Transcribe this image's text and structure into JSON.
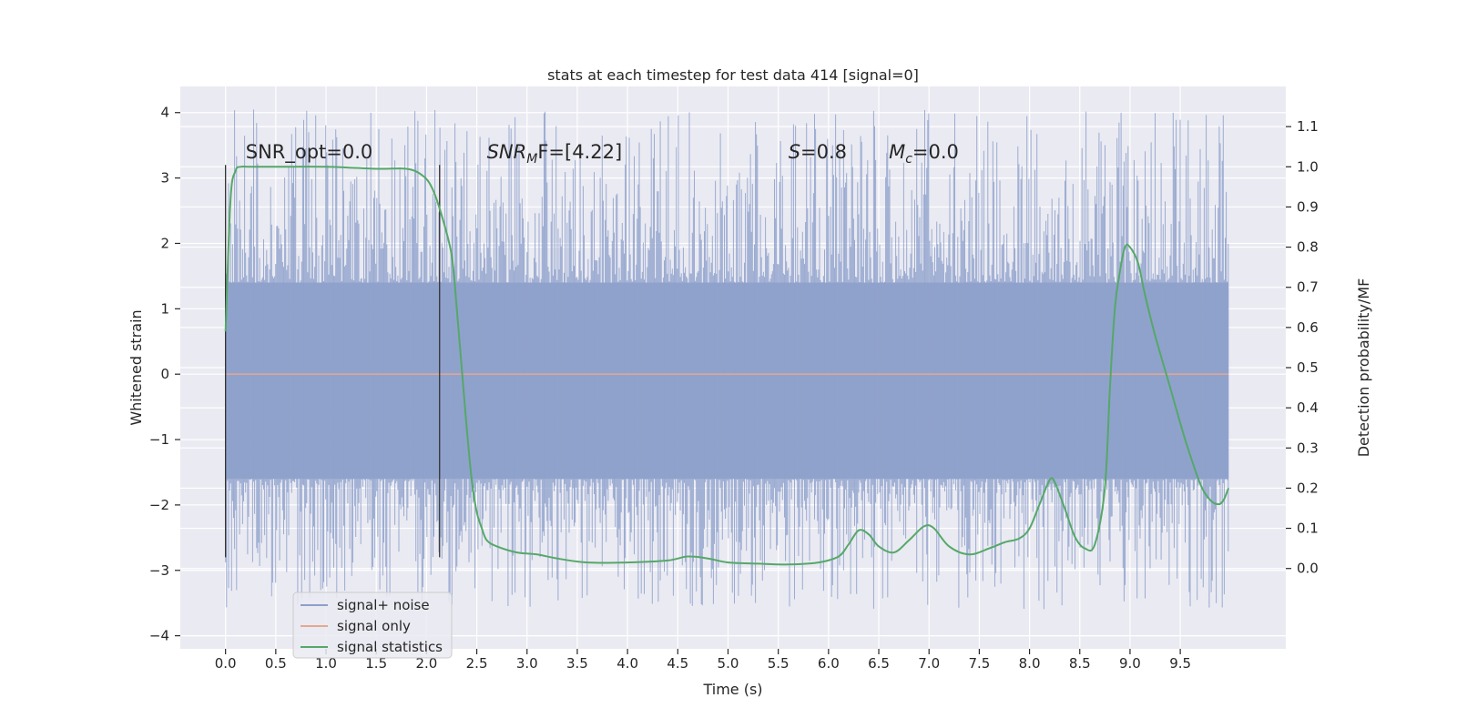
{
  "chart_data": {
    "type": "line",
    "title": "stats at each timestep for test data 414 [signal=0]",
    "xlabel": "Time (s)",
    "ylabel": "Whitened strain",
    "y2label": "Detection probability/MF",
    "xlim": [
      -0.45,
      10.55
    ],
    "ylim": [
      -4.2,
      4.4
    ],
    "y2lim": [
      -0.2,
      1.2
    ],
    "xticks": [
      0.0,
      0.5,
      1.0,
      1.5,
      2.0,
      2.5,
      3.0,
      3.5,
      4.0,
      4.5,
      5.0,
      5.5,
      6.0,
      6.5,
      7.0,
      7.5,
      8.0,
      8.5,
      9.0,
      9.5
    ],
    "xtick_labels": [
      "0.0",
      "0.5",
      "1.0",
      "1.5",
      "2.0",
      "2.5",
      "3.0",
      "3.5",
      "4.0",
      "4.5",
      "5.0",
      "5.5",
      "6.0",
      "6.5",
      "7.0",
      "7.5",
      "8.0",
      "8.5",
      "9.0",
      "9.5"
    ],
    "yticks": [
      -4,
      -3,
      -2,
      -1,
      0,
      1,
      2,
      3,
      4
    ],
    "ytick_labels": [
      "−4",
      "−3",
      "−2",
      "−1",
      "0",
      "1",
      "2",
      "3",
      "4"
    ],
    "y2ticks": [
      0.0,
      0.1,
      0.2,
      0.3,
      0.4,
      0.5,
      0.6,
      0.7,
      0.8,
      0.9,
      1.0,
      1.1
    ],
    "y2tick_labels": [
      "0.0",
      "0.1",
      "0.2",
      "0.3",
      "0.4",
      "0.5",
      "0.6",
      "0.7",
      "0.8",
      "0.9",
      "1.0",
      "1.1"
    ],
    "grid": true,
    "legend_placement": "lower-left",
    "series": [
      {
        "name": "signal+ noise",
        "color": "#8da0cb",
        "description_axis": "left",
        "envelope": {
          "t_start": 0.0,
          "t_end": 9.98,
          "typical_band": [
            -1.6,
            1.4
          ],
          "extreme_band": [
            -3.6,
            4.05
          ]
        }
      },
      {
        "name": "signal only",
        "color": "#e6a88e",
        "axis": "left",
        "x": [
          0.0,
          9.98
        ],
        "y": [
          0.0,
          0.0
        ]
      },
      {
        "name": "signal statistics",
        "color": "#55a868",
        "axis": "right",
        "x": [
          0.0,
          0.05,
          0.1,
          0.15,
          0.25,
          0.5,
          1.0,
          1.5,
          1.8,
          1.95,
          2.05,
          2.15,
          2.25,
          2.3,
          2.35,
          2.4,
          2.45,
          2.5,
          2.55,
          2.6,
          2.7,
          2.9,
          3.1,
          3.3,
          3.6,
          4.0,
          4.4,
          4.6,
          4.8,
          5.0,
          5.3,
          5.6,
          5.9,
          6.1,
          6.2,
          6.3,
          6.4,
          6.5,
          6.65,
          6.8,
          6.95,
          7.05,
          7.2,
          7.4,
          7.6,
          7.75,
          7.9,
          8.0,
          8.1,
          8.2,
          8.25,
          8.35,
          8.45,
          8.55,
          8.65,
          8.75,
          8.8,
          8.85,
          8.9,
          8.95,
          9.0,
          9.08,
          9.15,
          9.25,
          9.4,
          9.55,
          9.7,
          9.8,
          9.88,
          9.93,
          9.98
        ],
        "y": [
          0.59,
          0.92,
          0.99,
          1.0,
          1.0,
          1.0,
          1.0,
          0.995,
          0.995,
          0.98,
          0.95,
          0.88,
          0.78,
          0.65,
          0.5,
          0.35,
          0.22,
          0.14,
          0.1,
          0.07,
          0.055,
          0.04,
          0.035,
          0.025,
          0.015,
          0.015,
          0.02,
          0.03,
          0.025,
          0.015,
          0.012,
          0.01,
          0.015,
          0.03,
          0.06,
          0.095,
          0.085,
          0.055,
          0.04,
          0.07,
          0.105,
          0.1,
          0.055,
          0.035,
          0.05,
          0.065,
          0.075,
          0.1,
          0.16,
          0.22,
          0.215,
          0.15,
          0.08,
          0.05,
          0.06,
          0.2,
          0.45,
          0.65,
          0.74,
          0.8,
          0.8,
          0.76,
          0.68,
          0.58,
          0.45,
          0.32,
          0.21,
          0.17,
          0.16,
          0.17,
          0.2
        ]
      }
    ],
    "vertical_markers": [
      {
        "x": 0.0,
        "y_range": [
          -2.8,
          3.2
        ],
        "color": "#333333"
      },
      {
        "x": 2.13,
        "y_range": [
          -2.8,
          3.2
        ],
        "color": "#333333"
      }
    ],
    "annotations": [
      {
        "id": "snr-opt",
        "text": "SNR_opt=0.0",
        "x": 0.2,
        "y": 3.3
      },
      {
        "id": "snr-mf",
        "text_main": "SNR",
        "text_sub": "M",
        "text_rest": "F=[4.22]",
        "x": 2.6,
        "y": 3.3
      },
      {
        "id": "s-stat",
        "text_main": "S",
        "text_rest": "=0.8",
        "x": 5.6,
        "y": 3.3
      },
      {
        "id": "mc-stat",
        "text_main": "M",
        "text_sub": "c",
        "text_rest": "=0.0",
        "x": 6.6,
        "y": 3.3
      }
    ]
  }
}
